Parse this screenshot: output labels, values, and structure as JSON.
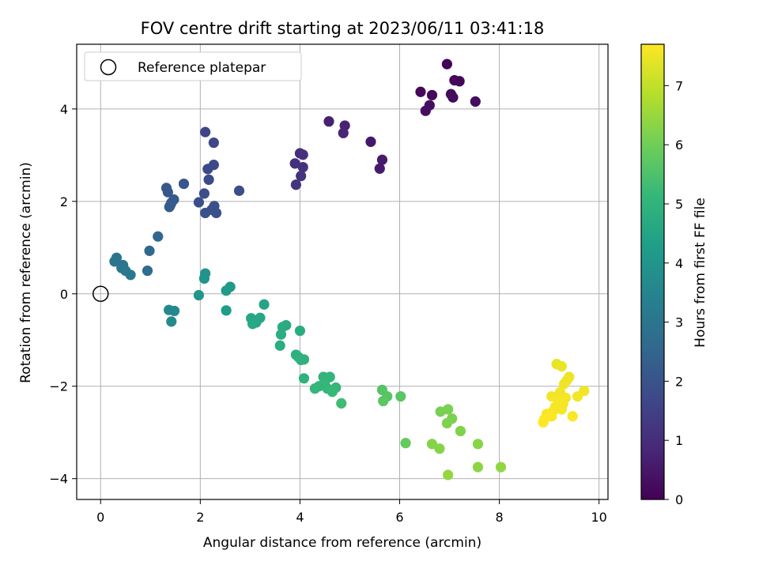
{
  "chart_data": {
    "type": "scatter",
    "title": "FOV centre drift starting at 2023/06/11 03:41:18",
    "xlabel": "Angular distance from reference (arcmin)",
    "ylabel": "Rotation from reference (arcmin)",
    "xlim": [
      -0.48,
      10.18
    ],
    "ylim": [
      -4.45,
      5.4
    ],
    "xticks": [
      0,
      2,
      4,
      6,
      8,
      10
    ],
    "xtick_labels": [
      "0",
      "2",
      "4",
      "6",
      "8",
      "10"
    ],
    "yticks": [
      -4,
      -2,
      0,
      2,
      4
    ],
    "ytick_labels": [
      "−4",
      "−2",
      "0",
      "2",
      "4"
    ],
    "grid": true,
    "legend": {
      "position": "top-left",
      "entries": [
        {
          "label": "Reference platepar",
          "marker": "open-circle"
        }
      ]
    },
    "reference_point": {
      "x": 0,
      "y": 0
    },
    "colorbar": {
      "label": "Hours from first FF file",
      "colormap": "viridis",
      "range": [
        0,
        7.7
      ],
      "ticks": [
        0,
        1,
        2,
        3,
        4,
        5,
        6,
        7
      ],
      "tick_labels": [
        "0",
        "1",
        "2",
        "3",
        "4",
        "5",
        "6",
        "7"
      ],
      "stops": [
        "#440154",
        "#482878",
        "#3e4989",
        "#31688e",
        "#26828e",
        "#1f9e89",
        "#35b779",
        "#6ece58",
        "#b5de2b",
        "#fde725"
      ]
    },
    "points": [
      {
        "x": 6.95,
        "y": 4.97,
        "t": 0.05
      },
      {
        "x": 7.1,
        "y": 4.62,
        "t": 0.1
      },
      {
        "x": 7.2,
        "y": 4.6,
        "t": 0.12
      },
      {
        "x": 6.42,
        "y": 4.37,
        "t": 0.15
      },
      {
        "x": 6.65,
        "y": 4.3,
        "t": 0.18
      },
      {
        "x": 7.03,
        "y": 4.32,
        "t": 0.2
      },
      {
        "x": 7.07,
        "y": 4.25,
        "t": 0.22
      },
      {
        "x": 7.52,
        "y": 4.16,
        "t": 0.25
      },
      {
        "x": 6.6,
        "y": 4.08,
        "t": 0.27
      },
      {
        "x": 6.52,
        "y": 3.96,
        "t": 0.3
      },
      {
        "x": 5.42,
        "y": 3.29,
        "t": 0.5
      },
      {
        "x": 5.65,
        "y": 2.9,
        "t": 0.55
      },
      {
        "x": 5.6,
        "y": 2.71,
        "t": 0.58
      },
      {
        "x": 4.58,
        "y": 3.73,
        "t": 0.7
      },
      {
        "x": 4.9,
        "y": 3.64,
        "t": 0.75
      },
      {
        "x": 4.87,
        "y": 3.48,
        "t": 0.78
      },
      {
        "x": 4.0,
        "y": 3.04,
        "t": 1.0
      },
      {
        "x": 4.06,
        "y": 3.01,
        "t": 1.05
      },
      {
        "x": 3.9,
        "y": 2.82,
        "t": 1.1
      },
      {
        "x": 4.06,
        "y": 2.74,
        "t": 1.12
      },
      {
        "x": 4.02,
        "y": 2.55,
        "t": 1.15
      },
      {
        "x": 3.92,
        "y": 2.36,
        "t": 1.2
      },
      {
        "x": 2.1,
        "y": 3.5,
        "t": 1.6
      },
      {
        "x": 2.27,
        "y": 3.27,
        "t": 1.65
      },
      {
        "x": 2.27,
        "y": 2.79,
        "t": 1.7
      },
      {
        "x": 2.15,
        "y": 2.7,
        "t": 1.72
      },
      {
        "x": 2.17,
        "y": 2.47,
        "t": 1.75
      },
      {
        "x": 2.78,
        "y": 2.23,
        "t": 1.8
      },
      {
        "x": 2.08,
        "y": 2.17,
        "t": 1.82
      },
      {
        "x": 1.97,
        "y": 1.98,
        "t": 1.85
      },
      {
        "x": 2.28,
        "y": 1.9,
        "t": 1.88
      },
      {
        "x": 2.23,
        "y": 1.82,
        "t": 1.9
      },
      {
        "x": 2.1,
        "y": 1.75,
        "t": 1.92
      },
      {
        "x": 2.32,
        "y": 1.75,
        "t": 1.95
      },
      {
        "x": 1.67,
        "y": 2.38,
        "t": 2.05
      },
      {
        "x": 1.32,
        "y": 2.29,
        "t": 2.1
      },
      {
        "x": 1.35,
        "y": 2.2,
        "t": 2.12
      },
      {
        "x": 1.47,
        "y": 2.04,
        "t": 2.15
      },
      {
        "x": 1.42,
        "y": 1.97,
        "t": 2.18
      },
      {
        "x": 1.4,
        "y": 1.92,
        "t": 2.2
      },
      {
        "x": 1.38,
        "y": 1.88,
        "t": 2.22
      },
      {
        "x": 1.15,
        "y": 1.24,
        "t": 2.5
      },
      {
        "x": 0.98,
        "y": 0.93,
        "t": 2.6
      },
      {
        "x": 0.94,
        "y": 0.5,
        "t": 2.7
      },
      {
        "x": 0.32,
        "y": 0.78,
        "t": 2.9
      },
      {
        "x": 0.28,
        "y": 0.7,
        "t": 2.95
      },
      {
        "x": 0.45,
        "y": 0.62,
        "t": 3.0
      },
      {
        "x": 0.42,
        "y": 0.56,
        "t": 3.02
      },
      {
        "x": 0.5,
        "y": 0.5,
        "t": 3.05
      },
      {
        "x": 0.6,
        "y": 0.41,
        "t": 3.1
      },
      {
        "x": 1.37,
        "y": -0.35,
        "t": 3.6
      },
      {
        "x": 1.48,
        "y": -0.37,
        "t": 3.65
      },
      {
        "x": 1.42,
        "y": -0.6,
        "t": 3.7
      },
      {
        "x": 2.1,
        "y": 0.44,
        "t": 3.95
      },
      {
        "x": 2.08,
        "y": 0.33,
        "t": 4.0
      },
      {
        "x": 1.97,
        "y": -0.03,
        "t": 4.05
      },
      {
        "x": 2.6,
        "y": 0.15,
        "t": 4.15
      },
      {
        "x": 2.52,
        "y": 0.07,
        "t": 4.2
      },
      {
        "x": 2.52,
        "y": -0.36,
        "t": 4.25
      },
      {
        "x": 3.28,
        "y": -0.23,
        "t": 4.5
      },
      {
        "x": 3.02,
        "y": -0.53,
        "t": 4.55
      },
      {
        "x": 3.2,
        "y": -0.52,
        "t": 4.58
      },
      {
        "x": 3.12,
        "y": -0.62,
        "t": 4.6
      },
      {
        "x": 3.05,
        "y": -0.65,
        "t": 4.62
      },
      {
        "x": 3.72,
        "y": -0.68,
        "t": 4.7
      },
      {
        "x": 3.65,
        "y": -0.72,
        "t": 4.72
      },
      {
        "x": 4.0,
        "y": -0.8,
        "t": 4.75
      },
      {
        "x": 3.62,
        "y": -0.88,
        "t": 4.78
      },
      {
        "x": 3.6,
        "y": -1.12,
        "t": 4.8
      },
      {
        "x": 3.92,
        "y": -1.32,
        "t": 4.85
      },
      {
        "x": 3.97,
        "y": -1.37,
        "t": 4.88
      },
      {
        "x": 4.08,
        "y": -1.42,
        "t": 4.9
      },
      {
        "x": 4.02,
        "y": -1.43,
        "t": 4.92
      },
      {
        "x": 4.08,
        "y": -1.83,
        "t": 4.95
      },
      {
        "x": 4.47,
        "y": -1.8,
        "t": 5.0
      },
      {
        "x": 4.6,
        "y": -1.8,
        "t": 5.02
      },
      {
        "x": 4.5,
        "y": -1.9,
        "t": 5.05
      },
      {
        "x": 4.38,
        "y": -2.0,
        "t": 5.08
      },
      {
        "x": 4.72,
        "y": -2.03,
        "t": 5.1
      },
      {
        "x": 4.3,
        "y": -2.05,
        "t": 5.12
      },
      {
        "x": 4.55,
        "y": -2.05,
        "t": 5.15
      },
      {
        "x": 4.65,
        "y": -2.12,
        "t": 5.18
      },
      {
        "x": 4.83,
        "y": -2.37,
        "t": 5.3
      },
      {
        "x": 5.65,
        "y": -2.08,
        "t": 5.6
      },
      {
        "x": 5.75,
        "y": -2.22,
        "t": 5.65
      },
      {
        "x": 6.02,
        "y": -2.22,
        "t": 5.68
      },
      {
        "x": 5.67,
        "y": -2.32,
        "t": 5.7
      },
      {
        "x": 6.12,
        "y": -3.23,
        "t": 5.85
      },
      {
        "x": 6.82,
        "y": -2.55,
        "t": 6.1
      },
      {
        "x": 6.97,
        "y": -2.5,
        "t": 6.12
      },
      {
        "x": 7.05,
        "y": -2.7,
        "t": 6.15
      },
      {
        "x": 6.95,
        "y": -2.8,
        "t": 6.18
      },
      {
        "x": 7.22,
        "y": -2.97,
        "t": 6.2
      },
      {
        "x": 6.65,
        "y": -3.25,
        "t": 6.25
      },
      {
        "x": 6.8,
        "y": -3.35,
        "t": 6.28
      },
      {
        "x": 7.57,
        "y": -3.25,
        "t": 6.3
      },
      {
        "x": 7.57,
        "y": -3.75,
        "t": 6.35
      },
      {
        "x": 8.03,
        "y": -3.75,
        "t": 6.4
      },
      {
        "x": 6.97,
        "y": -3.92,
        "t": 6.42
      },
      {
        "x": 9.15,
        "y": -1.52,
        "t": 7.45
      },
      {
        "x": 9.25,
        "y": -1.57,
        "t": 7.48
      },
      {
        "x": 9.4,
        "y": -1.8,
        "t": 7.5
      },
      {
        "x": 9.35,
        "y": -1.88,
        "t": 7.52
      },
      {
        "x": 9.3,
        "y": -1.95,
        "t": 7.53
      },
      {
        "x": 9.7,
        "y": -2.1,
        "t": 7.55
      },
      {
        "x": 9.22,
        "y": -2.13,
        "t": 7.56
      },
      {
        "x": 9.05,
        "y": -2.22,
        "t": 7.57
      },
      {
        "x": 9.57,
        "y": -2.22,
        "t": 7.58
      },
      {
        "x": 9.33,
        "y": -2.25,
        "t": 7.59
      },
      {
        "x": 9.17,
        "y": -2.3,
        "t": 7.6
      },
      {
        "x": 9.28,
        "y": -2.38,
        "t": 7.61
      },
      {
        "x": 9.12,
        "y": -2.45,
        "t": 7.62
      },
      {
        "x": 9.25,
        "y": -2.5,
        "t": 7.63
      },
      {
        "x": 9.07,
        "y": -2.55,
        "t": 7.64
      },
      {
        "x": 8.95,
        "y": -2.6,
        "t": 7.65
      },
      {
        "x": 9.05,
        "y": -2.65,
        "t": 7.66
      },
      {
        "x": 9.47,
        "y": -2.65,
        "t": 7.67
      },
      {
        "x": 8.9,
        "y": -2.72,
        "t": 7.68
      },
      {
        "x": 8.88,
        "y": -2.78,
        "t": 7.7
      }
    ]
  }
}
